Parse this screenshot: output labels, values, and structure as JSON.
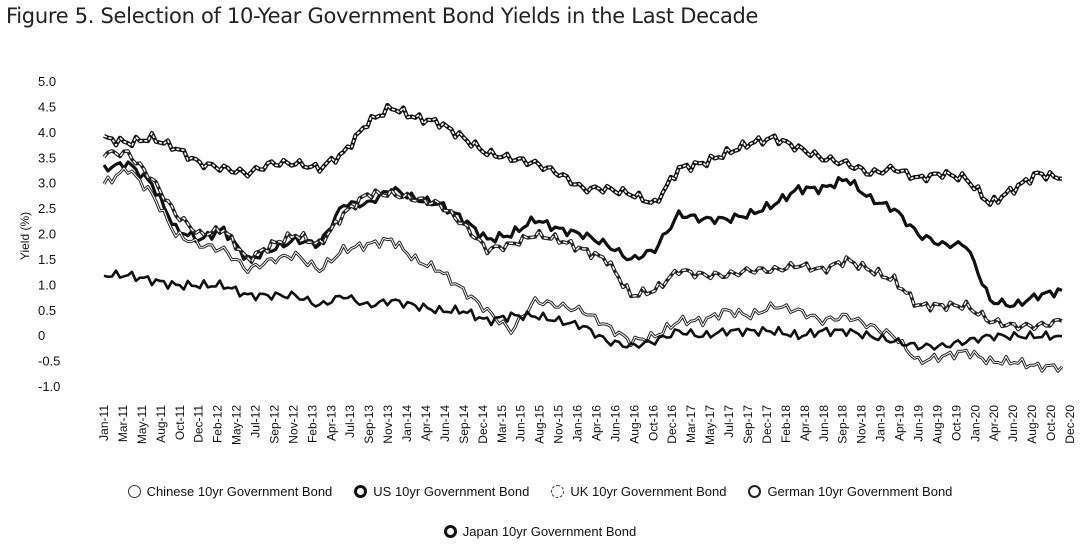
{
  "title": "Figure 5. Selection of 10-Year Government Bond Yields in the Last Decade",
  "chart_data": {
    "type": "line",
    "title": "Figure 5. Selection of 10-Year Government Bond Yields in the Last Decade",
    "ylabel": "Yield (%)",
    "xlabel": "",
    "ylim": [
      -1.0,
      5.0
    ],
    "yticks": [
      "5.0",
      "4.5",
      "4.0",
      "3.5",
      "3.0",
      "2.5",
      "2.0",
      "1.5",
      "1.0",
      "0.5",
      "0",
      "-0.5",
      "-1.0"
    ],
    "x_tick_labels": [
      "Jan-11",
      "Mar-11",
      "May-11",
      "Aug-11",
      "Oct-11",
      "Dec-11",
      "Feb-12",
      "May-12",
      "Jul-12",
      "Sep-12",
      "Nov-12",
      "Feb-13",
      "Apr-13",
      "Jul-13",
      "Sep-13",
      "Nov-13",
      "Jan-14",
      "Apr-14",
      "Jun-14",
      "Sep-14",
      "Dec-14",
      "Mar-15",
      "Jun-15",
      "Aug-15",
      "Nov-15",
      "Jan-16",
      "Apr-16",
      "Jun-16",
      "Aug-16",
      "Oct-16",
      "Dec-16",
      "Mar-17",
      "May-17",
      "Jul-17",
      "Sep-17",
      "Dec-17",
      "Feb-18",
      "Apr-18",
      "Jun-18",
      "Sep-18",
      "Nov-18",
      "Jan-19",
      "Apr-19",
      "Jun-19",
      "Aug-19",
      "Oct-19",
      "Jan-20",
      "Apr-20",
      "Jun-20",
      "Aug-20",
      "Oct-20",
      "Dec-20"
    ],
    "grid": false,
    "legend_position": "bottom",
    "x": [
      "2011-01",
      "2011-04",
      "2011-07",
      "2011-10",
      "2012-01",
      "2012-04",
      "2012-07",
      "2012-10",
      "2013-01",
      "2013-04",
      "2013-07",
      "2013-10",
      "2014-01",
      "2014-04",
      "2014-07",
      "2014-10",
      "2015-01",
      "2015-04",
      "2015-07",
      "2015-10",
      "2016-01",
      "2016-04",
      "2016-07",
      "2016-10",
      "2017-01",
      "2017-04",
      "2017-07",
      "2017-10",
      "2018-01",
      "2018-04",
      "2018-07",
      "2018-10",
      "2019-01",
      "2019-04",
      "2019-07",
      "2019-10",
      "2020-01",
      "2020-04",
      "2020-07",
      "2020-10",
      "2020-12"
    ],
    "series": [
      {
        "name": "Chinese 10yr Government Bond",
        "color": "#ffffff",
        "dash": "none",
        "values": [
          3.9,
          3.8,
          3.9,
          3.7,
          3.4,
          3.3,
          3.2,
          3.4,
          3.4,
          3.3,
          3.6,
          4.2,
          4.5,
          4.3,
          4.2,
          3.9,
          3.6,
          3.5,
          3.4,
          3.2,
          2.9,
          2.9,
          2.8,
          2.6,
          3.3,
          3.4,
          3.6,
          3.8,
          3.9,
          3.7,
          3.5,
          3.4,
          3.2,
          3.3,
          3.1,
          3.2,
          3.1,
          2.6,
          2.9,
          3.2,
          3.1
        ]
      },
      {
        "name": "US 10yr Government Bond",
        "color": "#111111",
        "dash": "none",
        "values": [
          3.3,
          3.4,
          3.0,
          2.1,
          1.9,
          2.1,
          1.5,
          1.7,
          1.9,
          1.8,
          2.6,
          2.6,
          2.9,
          2.7,
          2.6,
          2.3,
          1.9,
          2.0,
          2.3,
          2.1,
          2.0,
          1.8,
          1.5,
          1.7,
          2.4,
          2.3,
          2.3,
          2.4,
          2.6,
          2.9,
          2.9,
          3.1,
          2.7,
          2.5,
          2.0,
          1.8,
          1.8,
          0.7,
          0.6,
          0.8,
          0.9
        ]
      },
      {
        "name": "UK 10yr Government Bond",
        "color": "#ffffff",
        "dash": "none",
        "values": [
          3.6,
          3.6,
          3.1,
          2.4,
          2.0,
          2.1,
          1.5,
          1.8,
          2.0,
          1.8,
          2.4,
          2.8,
          2.8,
          2.7,
          2.6,
          2.2,
          1.7,
          1.8,
          2.0,
          1.9,
          1.7,
          1.5,
          0.8,
          0.9,
          1.3,
          1.2,
          1.2,
          1.3,
          1.3,
          1.4,
          1.3,
          1.5,
          1.3,
          1.1,
          0.6,
          0.6,
          0.6,
          0.3,
          0.2,
          0.2,
          0.3
        ]
      },
      {
        "name": "German 10yr Government Bond",
        "color": "#ffffff",
        "dash": "none",
        "values": [
          3.0,
          3.3,
          2.8,
          2.0,
          1.8,
          1.7,
          1.3,
          1.5,
          1.6,
          1.3,
          1.7,
          1.8,
          1.9,
          1.5,
          1.3,
          0.9,
          0.5,
          0.1,
          0.7,
          0.6,
          0.5,
          0.2,
          -0.1,
          0.0,
          0.3,
          0.3,
          0.5,
          0.4,
          0.6,
          0.5,
          0.3,
          0.4,
          0.2,
          0.0,
          -0.5,
          -0.4,
          -0.3,
          -0.5,
          -0.5,
          -0.6,
          -0.6
        ]
      },
      {
        "name": "Japan 10yr Government Bond",
        "color": "#111111",
        "dash": "none",
        "values": [
          1.2,
          1.2,
          1.1,
          1.0,
          1.0,
          1.0,
          0.8,
          0.8,
          0.8,
          0.6,
          0.8,
          0.6,
          0.7,
          0.6,
          0.5,
          0.5,
          0.3,
          0.4,
          0.4,
          0.3,
          0.2,
          -0.1,
          -0.2,
          -0.1,
          0.1,
          0.0,
          0.1,
          0.1,
          0.1,
          0.0,
          0.1,
          0.1,
          0.0,
          -0.1,
          -0.2,
          -0.2,
          -0.1,
          0.0,
          0.0,
          0.0,
          0.0
        ]
      }
    ]
  },
  "legend": {
    "row1": [
      "Chinese 10yr Government Bond",
      "US 10yr Government Bond",
      "UK 10yr Government Bond",
      "German 10yr Government Bond"
    ],
    "row2": [
      "Japan 10yr Government Bond"
    ]
  }
}
